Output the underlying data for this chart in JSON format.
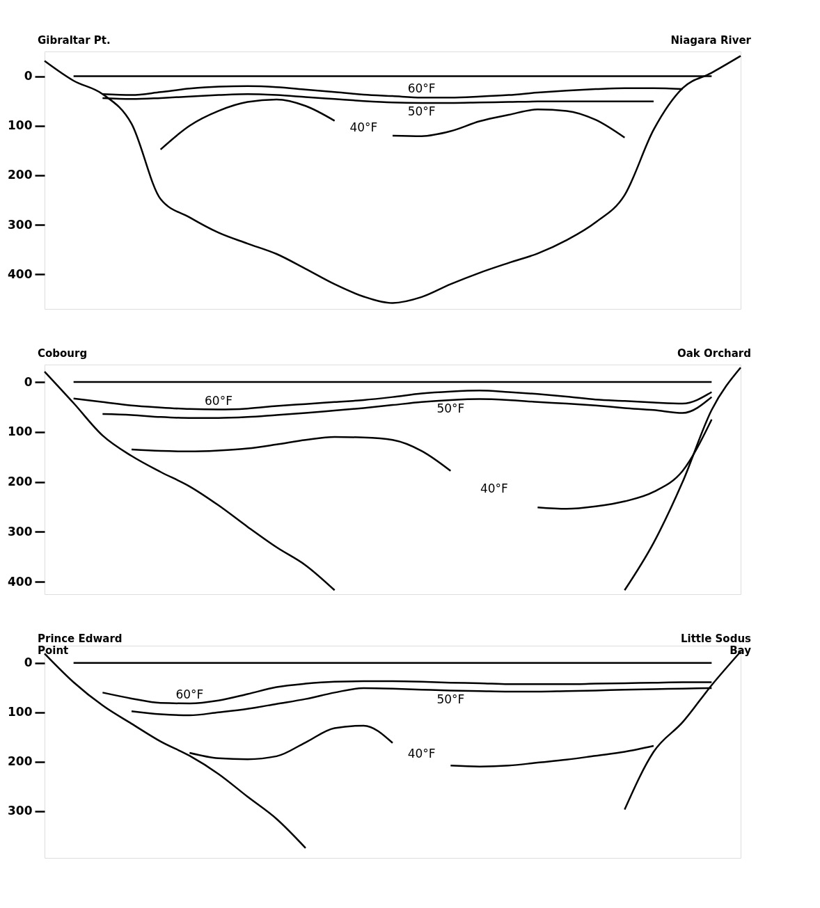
{
  "chart_data": [
    {
      "type": "line",
      "annotations": [
        "Gibraltar Pt.",
        "Niagara River"
      ],
      "categories": [
        null,
        null,
        null,
        null,
        null,
        null,
        null,
        null,
        null,
        null,
        null,
        null,
        null,
        null,
        null,
        null,
        null,
        null,
        null,
        null,
        null,
        null,
        null,
        null,
        null
      ],
      "ylim": [
        470,
        -50
      ],
      "yticks": [
        0,
        100,
        200,
        300,
        400
      ],
      "tick_labels": "y",
      "grid": false,
      "legend": false,
      "series": [
        {
          "color": "#000000",
          "values": [
            null,
            0,
            0,
            0,
            0,
            0,
            0,
            0,
            0,
            0,
            0,
            0,
            0,
            0,
            0,
            0,
            0,
            0,
            0,
            0,
            0,
            0,
            0,
            0,
            null
          ]
        },
        {
          "color": "#000000",
          "values": [
            -31,
            9,
            36,
            96,
            248,
            285,
            316,
            338,
            359,
            389,
            420,
            445,
            458,
            446,
            420,
            397,
            377,
            358,
            331,
            295,
            240,
            108,
            24,
            -7,
            -41
          ]
        },
        {
          "name": "60°F",
          "color": "#000000",
          "values": [
            null,
            null,
            36,
            38,
            32,
            25,
            21,
            20,
            22,
            27,
            32,
            37,
            40,
            43,
            43,
            41,
            38,
            33,
            29,
            26,
            24,
            24,
            26,
            null,
            null
          ]
        },
        {
          "name": "50°F",
          "color": "#000000",
          "values": [
            null,
            null,
            44,
            46,
            44,
            41,
            38,
            36,
            38,
            42,
            46,
            50,
            53,
            54,
            54,
            53,
            52,
            51,
            51,
            51,
            51,
            51,
            null,
            null,
            null
          ]
        },
        {
          "name": "40°F",
          "color": "#000000",
          "values": [
            null,
            null,
            null,
            null,
            148,
            100,
            70,
            52,
            47,
            60,
            90,
            null,
            120,
            121,
            111,
            91,
            78,
            67,
            70,
            88,
            124,
            null,
            null,
            null,
            null
          ]
        }
      ]
    },
    {
      "type": "line",
      "annotations": [
        "Cobourg",
        "Oak Orchard"
      ],
      "categories": [
        null,
        null,
        null,
        null,
        null,
        null,
        null,
        null,
        null,
        null,
        null,
        null,
        null,
        null,
        null,
        null,
        null,
        null,
        null,
        null,
        null,
        null,
        null,
        null,
        null
      ],
      "ylim": [
        425,
        -35
      ],
      "yticks": [
        0,
        100,
        200,
        300,
        400
      ],
      "tick_labels": "y",
      "grid": false,
      "legend": false,
      "series": [
        {
          "color": "#000000",
          "values": [
            null,
            0,
            0,
            0,
            0,
            0,
            0,
            0,
            0,
            0,
            0,
            0,
            0,
            0,
            0,
            0,
            0,
            0,
            0,
            0,
            0,
            0,
            0,
            0,
            null
          ]
        },
        {
          "color": "#000000",
          "values": [
            -21,
            42,
            107,
            148,
            180,
            209,
            247,
            290,
            331,
            367,
            417,
            null,
            null,
            null,
            null,
            null,
            null,
            null,
            null,
            null,
            417,
            322,
            200,
            56,
            -29
          ]
        },
        {
          "name": "60°F",
          "color": "#000000",
          "values": [
            null,
            33,
            40,
            47,
            51,
            54,
            55,
            53,
            48,
            44,
            40,
            36,
            30,
            23,
            19,
            17,
            20,
            24,
            29,
            35,
            38,
            41,
            43,
            20,
            null
          ]
        },
        {
          "name": "50°F",
          "color": "#000000",
          "values": [
            null,
            null,
            64,
            66,
            70,
            72,
            72,
            70,
            66,
            62,
            57,
            52,
            46,
            40,
            36,
            34,
            36,
            40,
            43,
            47,
            52,
            56,
            62,
            30,
            null
          ]
        },
        {
          "name": "40°F",
          "color": "#000000",
          "values": [
            null,
            null,
            null,
            135,
            138,
            139,
            137,
            133,
            125,
            116,
            110,
            111,
            116,
            138,
            178,
            null,
            null,
            251,
            254,
            249,
            239,
            220,
            178,
            75,
            null
          ]
        }
      ]
    },
    {
      "type": "line",
      "annotations": [
        "Prince Edward\nPoint",
        "Little Sodus\nBay"
      ],
      "categories": [
        null,
        null,
        null,
        null,
        null,
        null,
        null,
        null,
        null,
        null,
        null,
        null,
        null,
        null,
        null,
        null,
        null,
        null,
        null,
        null,
        null,
        null,
        null,
        null,
        null
      ],
      "ylim": [
        395,
        -35
      ],
      "yticks": [
        0,
        100,
        200,
        300
      ],
      "tick_labels": "y",
      "grid": false,
      "legend": false,
      "series": [
        {
          "color": "#000000",
          "values": [
            null,
            0,
            0,
            0,
            0,
            0,
            0,
            0,
            0,
            0,
            0,
            0,
            0,
            0,
            0,
            0,
            0,
            0,
            0,
            0,
            0,
            0,
            0,
            0,
            null
          ]
        },
        {
          "color": "#000000",
          "values": [
            -19,
            39,
            86,
            123,
            159,
            188,
            225,
            271,
            316,
            375,
            null,
            null,
            null,
            null,
            null,
            null,
            null,
            null,
            null,
            null,
            297,
            180,
            120,
            45,
            -23
          ]
        },
        {
          "name": "60°F",
          "color": "#000000",
          "values": [
            null,
            null,
            60,
            72,
            81,
            82,
            76,
            63,
            49,
            42,
            38,
            37,
            37,
            38,
            40,
            41,
            43,
            43,
            43,
            42,
            41,
            40,
            39,
            39,
            null
          ]
        },
        {
          "name": "50°F",
          "color": "#000000",
          "values": [
            null,
            null,
            null,
            98,
            104,
            106,
            100,
            93,
            83,
            73,
            60,
            51,
            52,
            54,
            56,
            57,
            58,
            58,
            57,
            56,
            54,
            53,
            52,
            51,
            null
          ]
        },
        {
          "name": "40°F",
          "color": "#000000",
          "values": [
            null,
            null,
            null,
            null,
            null,
            182,
            193,
            195,
            189,
            161,
            132,
            127,
            162,
            null,
            208,
            210,
            208,
            202,
            196,
            188,
            180,
            168,
            null,
            null,
            null
          ]
        }
      ]
    }
  ]
}
